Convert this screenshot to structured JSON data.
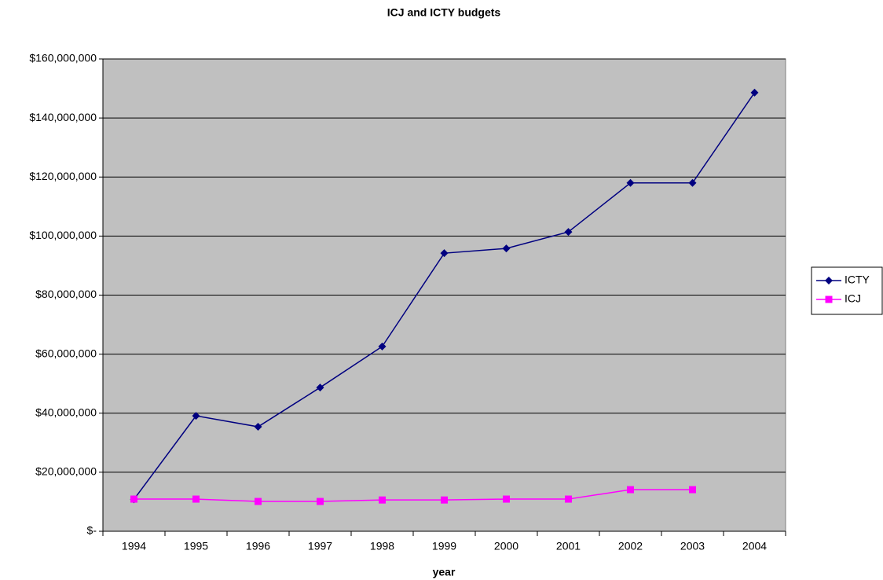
{
  "chart_data": {
    "type": "line",
    "title": "ICJ and ICTY budgets",
    "x_label": "year",
    "categories": [
      "1994",
      "1995",
      "1996",
      "1997",
      "1998",
      "1999",
      "2000",
      "2001",
      "2002",
      "2003",
      "2004"
    ],
    "series": [
      {
        "name": "ICTY",
        "color": "#000080",
        "marker": "diamond",
        "values": [
          10800000,
          39100000,
          35400000,
          48700000,
          62600000,
          94200000,
          95800000,
          101400000,
          118000000,
          118000000,
          148600000
        ]
      },
      {
        "name": "ICJ",
        "color": "#ff00ff",
        "marker": "square",
        "values": [
          10900000,
          10900000,
          10100000,
          10100000,
          10600000,
          10600000,
          10900000,
          10900000,
          14100000,
          14100000,
          null
        ]
      }
    ],
    "ylim": [
      0,
      160000000
    ],
    "yticks": [
      {
        "value": 0,
        "label": "$-"
      },
      {
        "value": 20000000,
        "label": "$20,000,000"
      },
      {
        "value": 40000000,
        "label": "$40,000,000"
      },
      {
        "value": 60000000,
        "label": "$60,000,000"
      },
      {
        "value": 80000000,
        "label": "$80,000,000"
      },
      {
        "value": 100000000,
        "label": "$100,000,000"
      },
      {
        "value": 120000000,
        "label": "$120,000,000"
      },
      {
        "value": 140000000,
        "label": "$140,000,000"
      },
      {
        "value": 160000000,
        "label": "$160,000,000"
      }
    ],
    "grid": true,
    "legend": "right",
    "plot_background": "#c0c0c0"
  }
}
